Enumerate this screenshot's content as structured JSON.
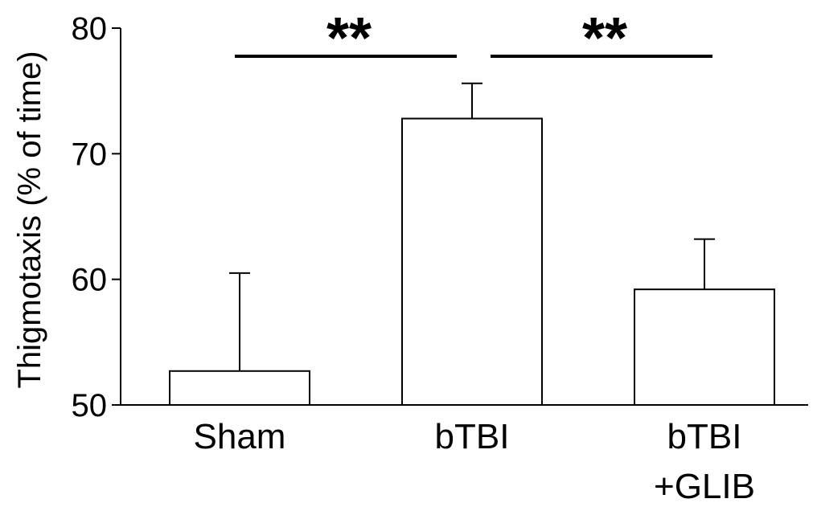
{
  "chart_data": {
    "type": "bar",
    "ylabel": "Thigmotaxis (% of time)",
    "xlabel": "",
    "title": "",
    "ylim": [
      50,
      80
    ],
    "yticks": [
      50,
      60,
      70,
      80
    ],
    "categories": [
      {
        "lines": [
          "Sham"
        ]
      },
      {
        "lines": [
          "bTBI"
        ]
      },
      {
        "lines": [
          "bTBI",
          "+GLIB"
        ]
      }
    ],
    "values": [
      52.7,
      72.8,
      59.2
    ],
    "error_upper": [
      60.5,
      75.6,
      63.2
    ],
    "bar_fill": "#ffffff",
    "stroke": "#000000",
    "significance": [
      {
        "from": 0,
        "to": 1,
        "label": "**"
      },
      {
        "from": 1,
        "to": 2,
        "label": "**"
      }
    ]
  }
}
